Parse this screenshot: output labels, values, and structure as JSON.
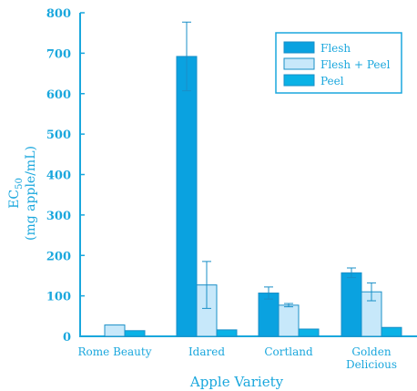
{
  "colors": {
    "axis": "#1aa7dd",
    "flesh": "#0aa2e0",
    "flesh_peel": "#c7e8fa",
    "peel": "#0ab2e6",
    "outline": "#1a8fc7"
  },
  "chart_data": {
    "type": "bar",
    "title": "",
    "xlabel": "Apple Variety",
    "ylabel_line1": "EC",
    "ylabel_sub": "50",
    "ylabel_line2": "(mg apple/mL)",
    "ylim": [
      0,
      800
    ],
    "yticks": [
      0,
      100,
      200,
      300,
      400,
      500,
      600,
      700,
      800
    ],
    "categories": [
      {
        "line1": "Rome Beauty",
        "line2": ""
      },
      {
        "line1": "Idared",
        "line2": ""
      },
      {
        "line1": "Cortland",
        "line2": ""
      },
      {
        "line1": "Golden",
        "line2": "Delicious"
      }
    ],
    "legend_position": "top-right",
    "series": [
      {
        "name": "Flesh",
        "values": [
          null,
          692,
          107,
          157
        ],
        "errors": [
          null,
          85,
          15,
          12
        ]
      },
      {
        "name": "Flesh + Peel",
        "values": [
          28,
          127,
          77,
          110
        ],
        "errors": [
          0,
          58,
          4,
          22
        ]
      },
      {
        "name": "Peel",
        "values": [
          14,
          16,
          18,
          22
        ],
        "errors": [
          0,
          0,
          0,
          0
        ]
      }
    ]
  }
}
